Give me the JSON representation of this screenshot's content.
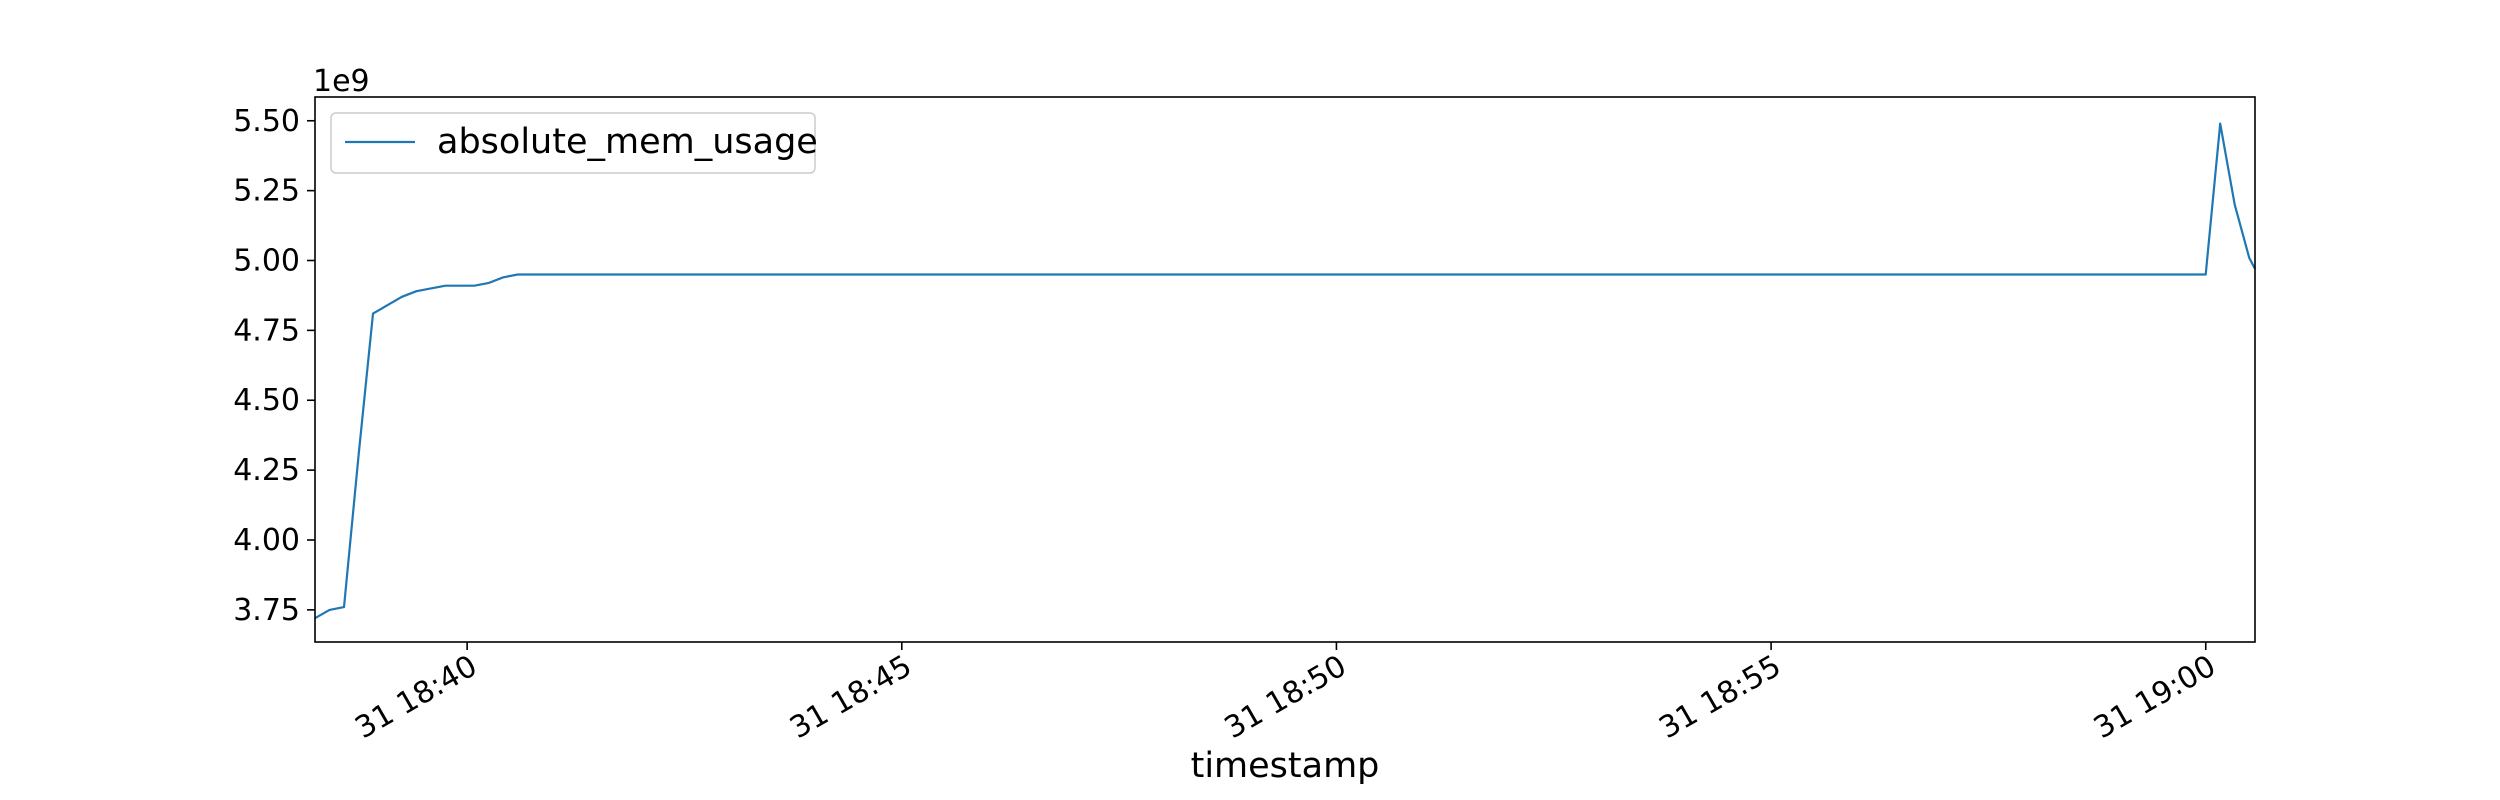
{
  "chart_data": {
    "type": "line",
    "title": "",
    "xlabel": "timestamp",
    "ylabel": "",
    "y_offset_label": "1e9",
    "legend": {
      "placement": "top-left",
      "entries": [
        "absolute_mem_usage"
      ]
    },
    "grid": false,
    "xlim": [
      "18:38:15",
      "19:00:34"
    ],
    "ylim": [
      3.635,
      5.585
    ],
    "x_ticks": [
      {
        "value": "18:40:00",
        "label": "31 18:40"
      },
      {
        "value": "18:45:00",
        "label": "31 18:45"
      },
      {
        "value": "18:50:00",
        "label": "31 18:50"
      },
      {
        "value": "18:55:00",
        "label": "31 18:55"
      },
      {
        "value": "19:00:00",
        "label": "31 19:00"
      }
    ],
    "y_ticks": [
      3.75,
      4.0,
      4.25,
      4.5,
      4.75,
      5.0,
      5.25,
      5.5
    ],
    "y_tick_labels": [
      "3.75",
      "4.00",
      "4.25",
      "4.50",
      "4.75",
      "5.00",
      "5.25",
      "5.50"
    ],
    "series": [
      {
        "name": "absolute_mem_usage",
        "color": "#1f77b4",
        "x": [
          "18:38:15",
          "18:38:25",
          "18:38:35",
          "18:38:45",
          "18:38:55",
          "18:39:05",
          "18:39:15",
          "18:39:25",
          "18:39:35",
          "18:39:45",
          "18:39:55",
          "18:40:05",
          "18:40:15",
          "18:40:25",
          "18:40:35",
          "18:45:00",
          "18:50:00",
          "18:55:00",
          "18:59:40",
          "18:59:50",
          "19:00:00",
          "19:00:10",
          "19:00:20",
          "19:00:30",
          "19:00:34"
        ],
        "y": [
          3.72,
          3.75,
          3.76,
          4.3,
          4.81,
          4.84,
          4.87,
          4.89,
          4.9,
          4.91,
          4.91,
          4.91,
          4.92,
          4.94,
          4.95,
          4.95,
          4.95,
          4.95,
          4.95,
          4.95,
          4.95,
          5.49,
          5.2,
          5.01,
          4.97
        ]
      }
    ]
  }
}
